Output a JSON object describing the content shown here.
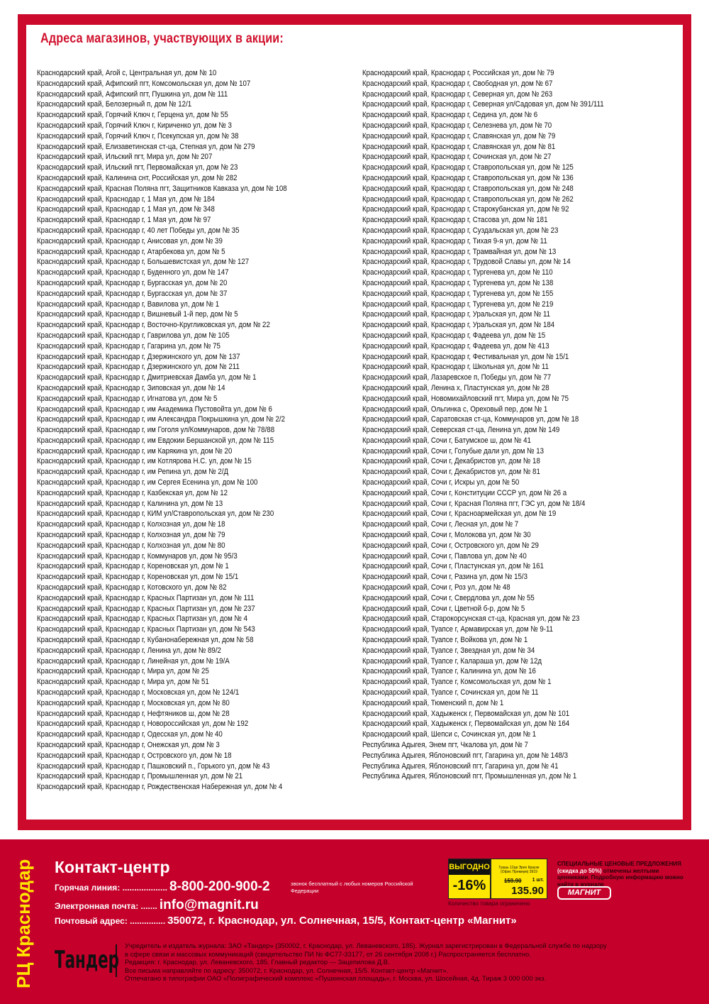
{
  "title": "Адреса магазинов, участвующих в акции:",
  "addresses_left": [
    "Краснодарский край, Агой с, Центральная ул, дом № 10",
    "Краснодарский край, Афипский пгт, Комсомольская ул, дом № 107",
    "Краснодарский край, Афипский пгт, Пушкина ул, дом № 111",
    "Краснодарский край, Белозерный п, дом № 12/1",
    "Краснодарский край, Горячий Ключ г, Герцена ул, дом № 55",
    "Краснодарский край, Горячий Ключ г, Кириченко ул, дом № 3",
    "Краснодарский край, Горячий Ключ г, Псекупская ул, дом № 38",
    "Краснодарский край, Елизаветинская ст-ца, Степная ул, дом № 279",
    "Краснодарский край, Ильский пгт, Мира ул, дом № 207",
    "Краснодарский край, Ильский пгт, Первомайская ул, дом № 23",
    "Краснодарский край, Калинина снт, Российская ул, дом № 282",
    "Краснодарский край, Красная Поляна пгт, Защитников Кавказа ул, дом № 108",
    "Краснодарский край, Краснодар г, 1 Мая ул, дом № 184",
    "Краснодарский край, Краснодар г, 1 Мая ул, дом № 348",
    "Краснодарский край, Краснодар г, 1 Мая ул, дом № 97",
    "Краснодарский край, Краснодар г, 40 лет Победы ул, дом № 35",
    "Краснодарский край, Краснодар г, Анисовая ул, дом № 39",
    "Краснодарский край, Краснодар г, Атарбекова ул, дом № 5",
    "Краснодарский край, Краснодар г, Большевистская ул, дом № 127",
    "Краснодарский край, Краснодар г, Буденного ул, дом № 147",
    "Краснодарский край, Краснодар г, Бургасская ул, дом № 20",
    "Краснодарский край, Краснодар г, Бургасская ул, дом № 37",
    "Краснодарский край, Краснодар г, Вавилова ул, дом № 1",
    "Краснодарский край, Краснодар г, Вишневый 1-й пер, дом № 5",
    "Краснодарский край, Краснодар г, Восточно-Кругликовская ул, дом № 22",
    "Краснодарский край, Краснодар г, Гаврилова ул, дом № 105",
    "Краснодарский край, Краснодар г, Гагарина ул, дом № 75",
    "Краснодарский край, Краснодар г, Дзержинского ул, дом № 137",
    "Краснодарский край, Краснодар г, Дзержинского ул, дом № 211",
    "Краснодарский край, Краснодар г, Дмитриевская Дамба ул, дом № 1",
    "Краснодарский край, Краснодар г, Зиповская ул, дом № 14",
    "Краснодарский край, Краснодар г, Игнатова ул, дом № 5",
    "Краснодарский край, Краснодар г, им Академика Пустовойта ул, дом № 6",
    "Краснодарский край, Краснодар г, им Александра Покрышкина ул, дом № 2/2",
    "Краснодарский край, Краснодар г, им Гоголя ул/Коммунаров, дом № 78/88",
    "Краснодарский край, Краснодар г, им Евдокии Бершанской ул, дом № 115",
    "Краснодарский край, Краснодар г, им Карякина ул, дом № 20",
    "Краснодарский край, Краснодар г, им Котлярова Н.С. ул, дом № 15",
    "Краснодарский край, Краснодар г, им Репина ул, дом № 2/Д",
    "Краснодарский край, Краснодар г, им Сергея Есенина ул, дом № 100",
    "Краснодарский край, Краснодар г, Казбекская ул, дом № 12",
    "Краснодарский край, Краснодар г, Калинина ул, дом № 13",
    "Краснодарский край, Краснодар г, КИМ ул/Ставропольская ул, дом № 230",
    "Краснодарский край, Краснодар г, Колхозная ул, дом № 18",
    "Краснодарский край, Краснодар г, Колхозная ул, дом № 79",
    "Краснодарский край, Краснодар г, Колхозная ул, дом № 80",
    "Краснодарский край, Краснодар г, Коммунаров ул, дом № 95/3",
    "Краснодарский край, Краснодар г, Кореновская ул, дом № 1",
    "Краснодарский край, Краснодар г, Кореновская ул, дом № 15/1",
    "Краснодарский край, Краснодар г, Котовского ул, дом № 82",
    "Краснодарский край, Краснодар г, Красных Партизан ул, дом № 111",
    "Краснодарский край, Краснодар г, Красных Партизан ул, дом № 237",
    "Краснодарский край, Краснодар г, Красных Партизан ул, дом № 4",
    "Краснодарский край, Краснодар г, Красных Партизан ул, дом № 543",
    "Краснодарский край, Краснодар г, Кубанонабережная ул, дом № 58",
    "Краснодарский край, Краснодар г, Ленина ул, дом № 89/2",
    "Краснодарский край, Краснодар г, Линейная ул, дом № 19/А",
    "Краснодарский край, Краснодар г, Мира ул, дом № 25",
    "Краснодарский край, Краснодар г, Мира ул, дом № 51",
    "Краснодарский край, Краснодар г, Московская ул, дом № 124/1",
    "Краснодарский край, Краснодар г, Московская ул, дом № 80",
    "Краснодарский край, Краснодар г, Нефтяников ш, дом № 28",
    "Краснодарский край, Краснодар г, Новороссийская ул, дом № 192",
    "Краснодарский край, Краснодар г, Одесская ул, дом № 40",
    "Краснодарский край, Краснодар г, Онежская ул, дом № 3",
    "Краснодарский край, Краснодар г, Островского ул, дом № 18",
    "Краснодарский край, Краснодар г, Пашковский п., Горького ул, дом № 43",
    "Краснодарский край, Краснодар г, Промышленная ул, дом № 21",
    "Краснодарский край, Краснодар г, Рождественская Набережная ул, дом № 4"
  ],
  "addresses_right": [
    "Краснодарский край, Краснодар г, Российская ул, дом № 79",
    "Краснодарский край, Краснодар г, Свободная ул, дом № 67",
    "Краснодарский край, Краснодар г, Северная ул, дом № 263",
    "Краснодарский край, Краснодар г, Северная ул/Садовая ул, дом № 391/111",
    "Краснодарский край, Краснодар г, Седина ул, дом № 6",
    "Краснодарский край, Краснодар г, Селезнева ул, дом № 70",
    "Краснодарский край, Краснодар г, Славянская ул, дом № 79",
    "Краснодарский край, Краснодар г, Славянская ул, дом № 81",
    "Краснодарский край, Краснодар г, Сочинская ул, дом № 27",
    "Краснодарский край, Краснодар г, Ставропольская ул, дом № 125",
    "Краснодарский край, Краснодар г, Ставропольская ул, дом № 136",
    "Краснодарский край, Краснодар г, Ставропольская ул, дом № 248",
    "Краснодарский край, Краснодар г, Ставропольская ул, дом № 262",
    "Краснодарский край, Краснодар г, Старокубанская ул, дом № 92",
    "Краснодарский край, Краснодар г, Стасова ул, дом № 181",
    "Краснодарский край, Краснодар г, Суздальская ул, дом № 23",
    "Краснодарский край, Краснодар г, Тихая 9-я ул, дом № 11",
    "Краснодарский край, Краснодар г, Трамвайная ул, дом № 13",
    "Краснодарский край, Краснодар г, Трудовой Славы ул, дом № 14",
    "Краснодарский край, Краснодар г, Тургенева ул, дом № 110",
    "Краснодарский край, Краснодар г, Тургенева ул, дом № 138",
    "Краснодарский край, Краснодар г, Тургенева ул, дом № 155",
    "Краснодарский край, Краснодар г, Тургенева ул, дом № 219",
    "Краснодарский край, Краснодар г, Уральская ул, дом № 11",
    "Краснодарский край, Краснодар г, Уральская ул, дом № 184",
    "Краснодарский край, Краснодар г, Фадеева ул, дом № 15",
    "Краснодарский край, Краснодар г, Фадеева ул, дом № 413",
    "Краснодарский край, Краснодар г, Фестивальная ул, дом № 15/1",
    "Краснодарский край, Краснодар г, Школьная ул, дом № 11",
    "Краснодарский край, Лазаревское п, Победы ул, дом № 77",
    "Краснодарский край, Ленина х, Пластунская ул, дом № 28",
    "Краснодарский край, Новомихайловский пгт, Мира ул, дом № 75",
    "Краснодарский край, Ольгинка с, Ореховый пер, дом № 1",
    "Краснодарский край, Саратовская ст-ца, Коммунаров ул, дом № 18",
    "Краснодарский край, Северская ст-ца, Ленина ул, дом № 149",
    "Краснодарский край, Сочи г, Батумское ш, дом № 41",
    "Краснодарский край, Сочи г, Голубые дали ул, дом № 13",
    "Краснодарский край, Сочи г, Декабристов ул, дом № 18",
    "Краснодарский край, Сочи г, Декабристов ул, дом № 81",
    "Краснодарский край, Сочи г, Искры ул, дом № 50",
    "Краснодарский край, Сочи г, Конституции СССР ул, дом № 26 а",
    "Краснодарский край, Сочи г, Красная Поляна пгт, ГЭС ул, дом № 18/4",
    "Краснодарский край, Сочи г, Красноармейская ул, дом № 19",
    "Краснодарский край, Сочи г, Лесная ул, дом № 7",
    "Краснодарский край, Сочи г, Молокова ул, дом № 30",
    "Краснодарский край, Сочи г, Островского ул, дом № 29",
    "Краснодарский край, Сочи г, Павлова ул, дом № 40",
    "Краснодарский край, Сочи г, Пластунская ул, дом № 161",
    "Краснодарский край, Сочи г, Разина ул, дом № 15/3",
    "Краснодарский край, Сочи г, Роз ул, дом № 48",
    "Краснодарский край, Сочи г, Свердлова ул, дом № 55",
    "Краснодарский край, Сочи г, Цветной б-р, дом № 5",
    "Краснодарский край, Старокорсунская ст-ца, Красная ул, дом № 23",
    "Краснодарский край, Туапсе г, Армавирская ул, дом № 9-11",
    "Краснодарский край, Туапсе г, Войкова ул, дом № 1",
    "Краснодарский край, Туапсе г, Звездная ул, дом № 34",
    "Краснодарский край, Туапсе г, Калараша ул, дом № 12д",
    "Краснодарский край, Туапсе г, Калинина ул, дом № 16",
    "Краснодарский край, Туапсе г, Комсомольская ул, дом № 1",
    "Краснодарский край, Туапсе г, Сочинская ул, дом № 11",
    "Краснодарский край, Тюменский п, дом № 1",
    "Краснодарский край, Хадыженск г, Первомайская ул, дом № 101",
    "Краснодарский край, Хадыженск г, Первомайская ул, дом № 164",
    "Краснодарский край, Шепси с, Сочинская ул, дом № 1",
    "Республика Адыгея, Энем пгт, Чкалова ул, дом № 7",
    "Республика Адыгея, Яблоновский пгт, Гагарина ул, дом № 148/3",
    "Республика Адыгея, Яблоновский пгт, Гагарина ул, дом № 41",
    "Республика Адыгея, Яблоновский пгт, Промышленная ул, дом № 1"
  ],
  "footer": {
    "region": "РЦ Краснодар",
    "contact_title": "Контакт-центр",
    "hotline_label": "Горячая линия: ...................",
    "hotline": "8-800-200-900-2",
    "hotline_note": "звонок бесплатный с любых номеров Российской Федерации",
    "email_label": "Электронная почта: .......",
    "email": "info@magnit.ru",
    "post_label": "Почтовый адрес: ...............",
    "post": "350072, г. Краснодар, ул. Солнечная, 15/5, Контакт-центр «Магнит»",
    "publisher_logo": "Тандер",
    "legal": [
      "Учредитель и издатель журнала: ЗАО «Тандер» (350002, г. Краснодар, ул. Леваневского, 185). Журнал зарегистрирован в Федеральной службе по надзору",
      "в сфере связи и массовых коммуникаций (свидетельство ПИ № ФС77-33177, от 26 сентября 2008 г.) Распространяется бесплатно.",
      "Редакция: г. Краснодар, ул. Леваневского, 185. Главный редактор — Зацепилова Д.В.",
      "Все письма направляйте по адресу: 350072, г. Краснодар, ул. Солнечная, 15/5. Контакт-центр «Магнит».",
      "Отпечатано в типографии ОАО «Полиграфический комплекс «Пушкинская площадь», г. Москва, ул. Шосейная, 4д. Тираж 3 000 000 экз."
    ],
    "price_tag": {
      "badge": "ВЫГОДНО",
      "discount": "-16%",
      "product": "Гуашь 12цв Эрих Краузе (Офис Премиум) 3919",
      "old_price": "159.90",
      "qty": "1 шт.",
      "new_price": "135.90",
      "limited": "Количество товара ограничено"
    },
    "special_bold": "СПЕЦИАЛЬНЫЕ ЦЕНОВЫЕ ПРЕДЛОЖЕНИЯ",
    "special_white": "(скидка до 50%)",
    "special_rest": "отмечены желтыми ценниками. Подробную информацию можно найти в журнале",
    "brand": "МАГНИТ"
  },
  "colors": {
    "brand_red": "#cc0a2c",
    "accent_yellow": "#ffe600"
  }
}
